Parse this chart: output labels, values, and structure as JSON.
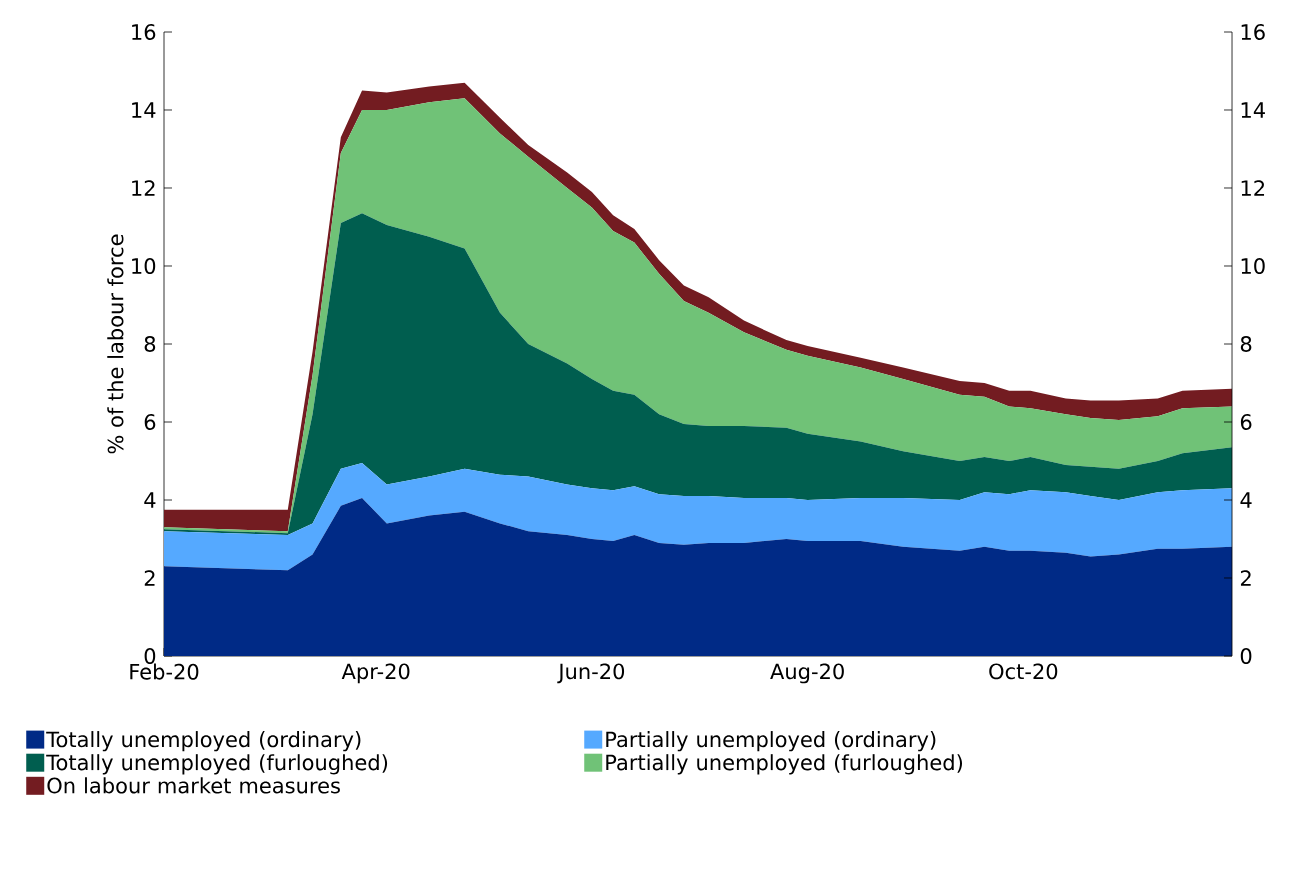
{
  "chart_data": {
    "type": "area",
    "stacked": true,
    "ylabel": "% of the labour force",
    "legend": "bottom",
    "x": [
      "2020-02-01",
      "2020-03-07",
      "2020-03-14",
      "2020-03-22",
      "2020-03-28",
      "2020-04-04",
      "2020-04-16",
      "2020-04-26",
      "2020-05-06",
      "2020-05-14",
      "2020-05-25",
      "2020-06-01",
      "2020-06-07",
      "2020-06-13",
      "2020-06-20",
      "2020-06-27",
      "2020-07-04",
      "2020-07-14",
      "2020-07-26",
      "2020-08-01",
      "2020-08-16",
      "2020-08-28",
      "2020-09-13",
      "2020-09-20",
      "2020-09-27",
      "2020-10-03",
      "2020-10-13",
      "2020-10-20",
      "2020-10-28",
      "2020-11-08",
      "2020-11-15",
      "2020-11-29"
    ],
    "series": [
      {
        "name": "Totally unemployed (ordinary)",
        "color": "#002a86",
        "values": [
          2.3,
          2.2,
          2.6,
          3.85,
          4.05,
          3.4,
          3.6,
          3.7,
          3.4,
          3.2,
          3.1,
          3.0,
          2.95,
          3.1,
          2.9,
          2.85,
          2.9,
          2.9,
          3.0,
          2.95,
          2.95,
          2.8,
          2.7,
          2.8,
          2.7,
          2.7,
          2.65,
          2.55,
          2.6,
          2.75,
          2.75,
          2.8
        ]
      },
      {
        "name": "Partially unemployed (ordinary)",
        "color": "#55a9ff",
        "values": [
          0.9,
          0.9,
          0.8,
          0.95,
          0.9,
          1.0,
          1.0,
          1.1,
          1.25,
          1.4,
          1.3,
          1.3,
          1.3,
          1.25,
          1.25,
          1.25,
          1.2,
          1.15,
          1.05,
          1.05,
          1.1,
          1.25,
          1.3,
          1.4,
          1.45,
          1.55,
          1.55,
          1.55,
          1.4,
          1.45,
          1.5,
          1.5
        ]
      },
      {
        "name": "Totally unemployed (furloughed)",
        "color": "#005e4f",
        "values": [
          0.05,
          0.05,
          2.8,
          6.3,
          6.4,
          6.65,
          6.15,
          5.65,
          4.15,
          3.4,
          3.1,
          2.8,
          2.55,
          2.35,
          2.05,
          1.85,
          1.8,
          1.85,
          1.8,
          1.7,
          1.45,
          1.2,
          1.0,
          0.9,
          0.85,
          0.85,
          0.7,
          0.75,
          0.8,
          0.8,
          0.95,
          1.05
        ]
      },
      {
        "name": "Partially unemployed (furloughed)",
        "color": "#70c277",
        "values": [
          0.05,
          0.05,
          1.0,
          1.8,
          2.65,
          2.95,
          3.45,
          3.85,
          4.6,
          4.8,
          4.5,
          4.4,
          4.1,
          3.9,
          3.6,
          3.15,
          2.9,
          2.4,
          2.0,
          2.0,
          1.9,
          1.85,
          1.7,
          1.55,
          1.4,
          1.25,
          1.3,
          1.25,
          1.25,
          1.15,
          1.15,
          1.05
        ]
      },
      {
        "name": "On labour market measures",
        "color": "#731c21",
        "values": [
          0.45,
          0.55,
          0.6,
          0.4,
          0.5,
          0.45,
          0.4,
          0.4,
          0.4,
          0.3,
          0.4,
          0.4,
          0.4,
          0.35,
          0.35,
          0.4,
          0.4,
          0.3,
          0.25,
          0.25,
          0.25,
          0.3,
          0.35,
          0.35,
          0.4,
          0.45,
          0.4,
          0.45,
          0.5,
          0.45,
          0.45,
          0.45
        ]
      }
    ],
    "xlim": [
      "2020-02-01",
      "2020-11-29"
    ],
    "xticks": [
      {
        "value": "2020-02-01",
        "label": "Feb-20"
      },
      {
        "value": "2020-03-01",
        "label": null
      },
      {
        "value": "2020-04-01",
        "label": "Apr-20"
      },
      {
        "value": "2020-05-01",
        "label": null
      },
      {
        "value": "2020-06-01",
        "label": "Jun-20"
      },
      {
        "value": "2020-07-01",
        "label": null
      },
      {
        "value": "2020-08-01",
        "label": "Aug-20"
      },
      {
        "value": "2020-09-01",
        "label": null
      },
      {
        "value": "2020-10-01",
        "label": "Oct-20"
      },
      {
        "value": "2020-11-01",
        "label": null
      }
    ],
    "ylim": [
      0,
      16
    ],
    "yticks": [
      0,
      2,
      4,
      6,
      8,
      10,
      12,
      14,
      16
    ],
    "y2lim": [
      0,
      16
    ],
    "y2ticks": [
      0,
      2,
      4,
      6,
      8,
      10,
      12,
      14,
      16
    ]
  }
}
